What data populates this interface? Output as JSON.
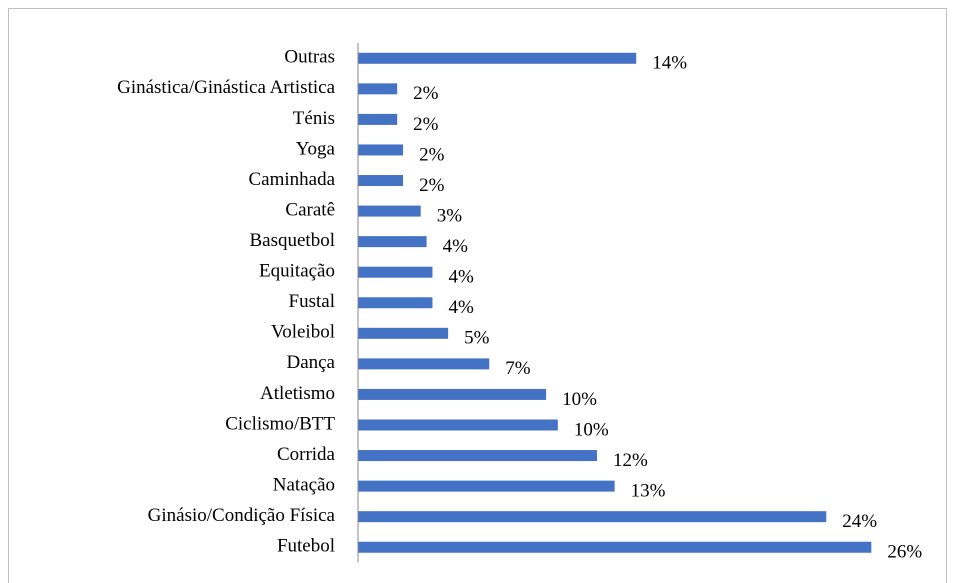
{
  "chart_data": {
    "type": "barh",
    "categories": [
      "Outras",
      "Ginástica/Ginástica Artistica",
      "Ténis",
      "Yoga",
      "Caminhada",
      "Caratê",
      "Basquetbol",
      "Equitação",
      "Fustal",
      "Voleibol",
      "Dança",
      "Atletismo",
      "Ciclismo/BTT",
      "Corrida",
      "Natação",
      "Ginásio/Condição Física",
      "Futebol"
    ],
    "values": [
      14.2,
      2.0,
      2.0,
      2.3,
      2.3,
      3.2,
      3.5,
      3.8,
      3.8,
      4.6,
      6.7,
      9.6,
      10.2,
      12.2,
      13.1,
      23.9,
      26.2
    ],
    "value_labels": [
      "14%",
      "2%",
      "2%",
      "2%",
      "2%",
      "3%",
      "4%",
      "4%",
      "4%",
      "5%",
      "7%",
      "10%",
      "10%",
      "12%",
      "13%",
      "24%",
      "26%"
    ],
    "color": "#4472c4",
    "xlim": [
      0,
      27
    ]
  }
}
